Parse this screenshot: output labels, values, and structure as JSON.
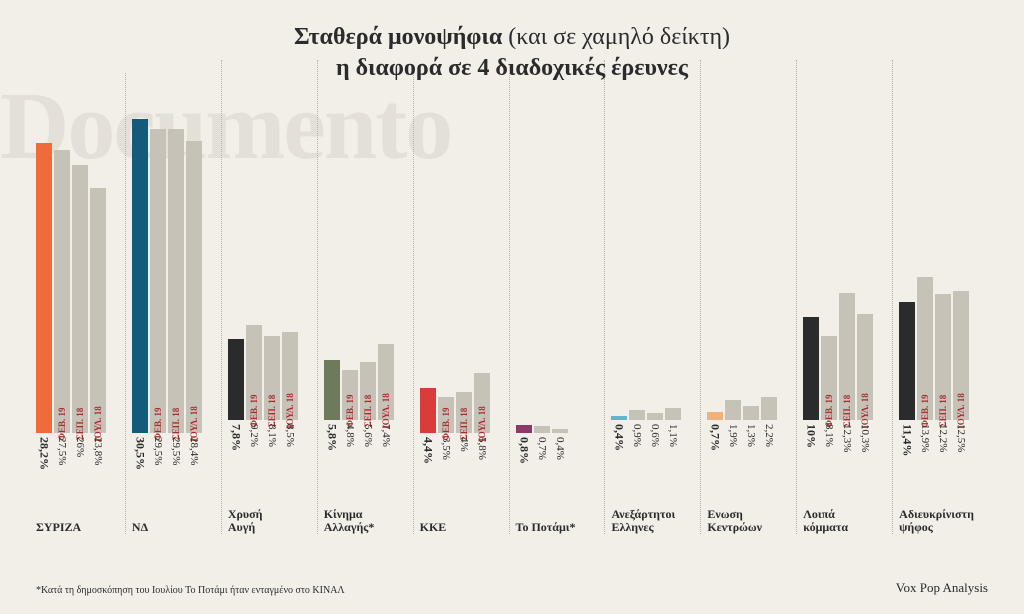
{
  "ymax": 35,
  "background_color": "#f2efe9",
  "watermark": "Documento",
  "watermark_color": "#e4e0d7",
  "title_line1_bold": "Σταθερά μονοψήφια ",
  "title_line1_light": "(και σε χαμηλό δείκτη)",
  "title_line2": "η διαφορά σε 4 διαδοχικές έρευνες",
  "period_labels": [
    "ΦΕΒ. 19",
    "ΣΕΠ. 18",
    "ΙΟΥΛ. 18"
  ],
  "period_label_color": "#a62f2f",
  "secondary_bar_color": "#c7c2b8",
  "footnote": "*Κατά τη δημοσκόπηση του Ιουλίου Το Ποτάμι ήταν ενταγμένο στο ΚΙΝΑΛ",
  "source": "Vox Pop Analysis",
  "parties": [
    {
      "name": "ΣΥΡΙΖΑ",
      "color": "#ef6b3a",
      "values": [
        28.2,
        27.5,
        26,
        23.8
      ],
      "labels": [
        "28,2%",
        "27,5%",
        "26%",
        "23,8%"
      ]
    },
    {
      "name": "ΝΔ",
      "color": "#145a7a",
      "values": [
        30.5,
        29.5,
        29.5,
        28.4
      ],
      "labels": [
        "30,5%",
        "29,5%",
        "29,5%",
        "28,4%"
      ]
    },
    {
      "name": "Χρυσή\nΑυγή",
      "color": "#2b2b2b",
      "values": [
        7.8,
        9.2,
        8.1,
        8.5
      ],
      "labels": [
        "7,8%",
        "9,2%",
        "8,1%",
        "8,5%"
      ]
    },
    {
      "name": "Κίνημα\nΑλλαγής*",
      "color": "#6e7a5c",
      "values": [
        5.8,
        4.8,
        5.6,
        7.4
      ],
      "labels": [
        "5,8%",
        "4,8%",
        "5,6%",
        "7,4%"
      ]
    },
    {
      "name": "ΚΚΕ",
      "color": "#da3b3b",
      "values": [
        4.4,
        3.5,
        4,
        5.8
      ],
      "labels": [
        "4,4%",
        "3,5%",
        "4%",
        "5,8%"
      ]
    },
    {
      "name": "Το Ποτάμι*",
      "color": "#8a3a6a",
      "values": [
        0.8,
        0.7,
        0.4
      ],
      "labels": [
        "0,8%",
        "0,7%",
        "0,4%"
      ]
    },
    {
      "name": "Ανεξάρτητοι\nΕλληνες",
      "color": "#5fb8c9",
      "values": [
        0.4,
        0.9,
        0.6,
        1.1
      ],
      "labels": [
        "0,4%",
        "0,9%",
        "0,6%",
        "1,1%"
      ]
    },
    {
      "name": "Ενωση\nΚεντρώων",
      "color": "#f0b27a",
      "values": [
        0.7,
        1.9,
        1.3,
        2.2
      ],
      "labels": [
        "0,7%",
        "1,9%",
        "1,3%",
        "2,2%"
      ]
    },
    {
      "name": "Λοιπά\nκόμματα",
      "color": "#2b2b2b",
      "values": [
        10,
        8.1,
        12.3,
        10.3
      ],
      "labels": [
        "10%",
        "8,1%",
        "12,3%",
        "10,3%"
      ]
    },
    {
      "name": "Αδιευκρίνιστη\nψήφος",
      "color": "#2b2b2b",
      "values": [
        11.4,
        13.9,
        12.2,
        12.5
      ],
      "labels": [
        "11,4%",
        "13,9%",
        "12,2%",
        "12,5%"
      ]
    }
  ]
}
